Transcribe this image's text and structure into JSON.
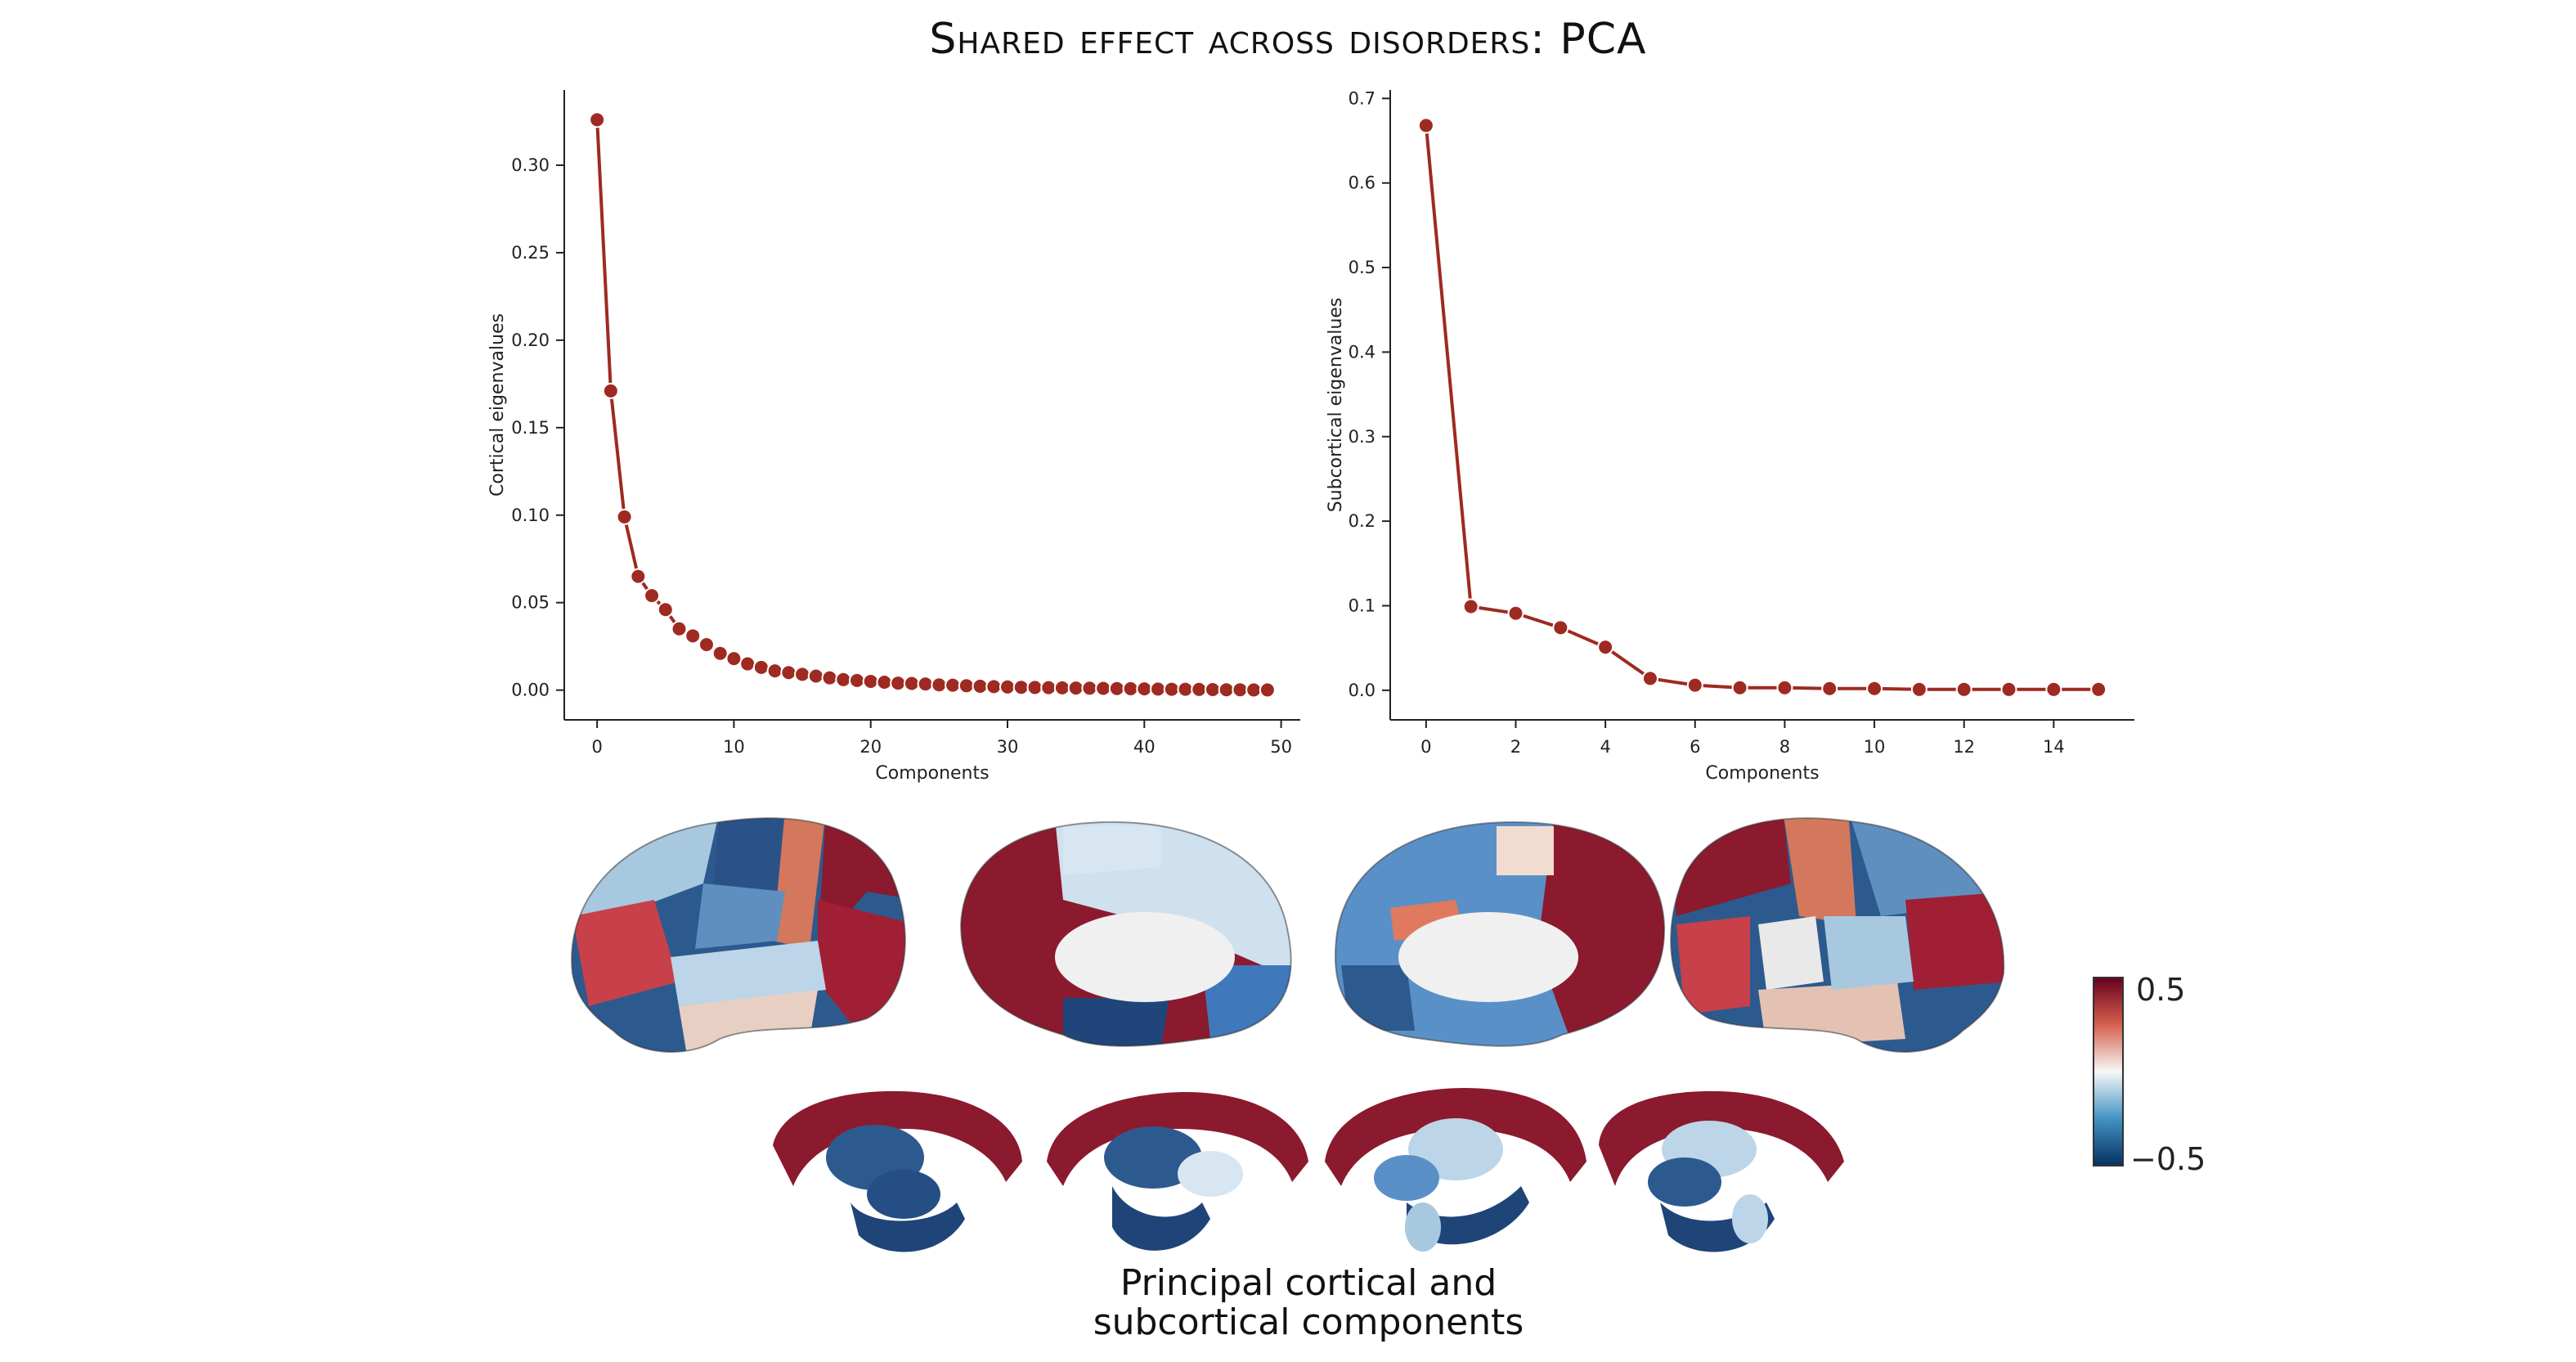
{
  "title": "Shared effect across disorders: PCA",
  "caption": {
    "line1": "Principal cortical and",
    "line2": "subcortical  components"
  },
  "colorbar": {
    "max_label": "0.5",
    "min_label": "−0.5",
    "colors": [
      "#67001f",
      "#d6604d",
      "#f7f7f7",
      "#4393c3",
      "#053061"
    ]
  },
  "colors": {
    "marker": "#9e2a22",
    "line": "#9e2a22"
  },
  "chart_data": [
    {
      "type": "line",
      "xlabel": "Components",
      "ylabel": "Cortical eigenvalues",
      "xlim": [
        -2.4,
        51.4
      ],
      "ylim": [
        -0.017,
        0.343
      ],
      "xticks": [
        0,
        10,
        20,
        30,
        40,
        50
      ],
      "xtick_labels": [
        "0",
        "10",
        "20",
        "30",
        "40",
        "50"
      ],
      "yticks": [
        0.0,
        0.05,
        0.1,
        0.15,
        0.2,
        0.25,
        0.3
      ],
      "ytick_labels": [
        "0.00",
        "0.05",
        "0.10",
        "0.15",
        "0.20",
        "0.25",
        "0.30"
      ],
      "x": [
        0,
        1,
        2,
        3,
        4,
        5,
        6,
        7,
        8,
        9,
        10,
        11,
        12,
        13,
        14,
        15,
        16,
        17,
        18,
        19,
        20,
        21,
        22,
        23,
        24,
        25,
        26,
        27,
        28,
        29,
        30,
        31,
        32,
        33,
        34,
        35,
        36,
        37,
        38,
        39,
        40,
        41,
        42,
        43,
        44,
        45,
        46,
        47,
        48,
        49
      ],
      "values": [
        0.326,
        0.171,
        0.099,
        0.065,
        0.054,
        0.046,
        0.035,
        0.031,
        0.026,
        0.021,
        0.018,
        0.015,
        0.013,
        0.011,
        0.01,
        0.009,
        0.008,
        0.007,
        0.006,
        0.0055,
        0.005,
        0.0045,
        0.004,
        0.0038,
        0.0035,
        0.003,
        0.0028,
        0.0025,
        0.0022,
        0.002,
        0.0018,
        0.0016,
        0.0015,
        0.0014,
        0.0013,
        0.0012,
        0.0011,
        0.001,
        0.0009,
        0.0008,
        0.0007,
        0.0006,
        0.0005,
        0.0005,
        0.0004,
        0.0003,
        0.0002,
        0.0002,
        0.0001,
        0.0001
      ],
      "grid": false
    },
    {
      "type": "line",
      "xlabel": "Components",
      "ylabel": "Subcortical eigenvalues",
      "xlim": [
        -0.8,
        15.8
      ],
      "ylim": [
        -0.035,
        0.71
      ],
      "xticks": [
        0,
        2,
        4,
        6,
        8,
        10,
        12,
        14
      ],
      "xtick_labels": [
        "0",
        "2",
        "4",
        "6",
        "8",
        "10",
        "12",
        "14"
      ],
      "yticks": [
        0.0,
        0.1,
        0.2,
        0.3,
        0.4,
        0.5,
        0.6,
        0.7
      ],
      "ytick_labels": [
        "0.0",
        "0.1",
        "0.2",
        "0.3",
        "0.4",
        "0.5",
        "0.6",
        "0.7"
      ],
      "x": [
        0,
        1,
        2,
        3,
        4,
        5,
        6,
        7,
        8,
        9,
        10,
        11,
        12,
        13,
        14,
        15
      ],
      "values": [
        0.668,
        0.099,
        0.091,
        0.074,
        0.051,
        0.014,
        0.006,
        0.003,
        0.003,
        0.002,
        0.002,
        0.001,
        0.001,
        0.001,
        0.001,
        0.001
      ],
      "grid": false
    }
  ]
}
